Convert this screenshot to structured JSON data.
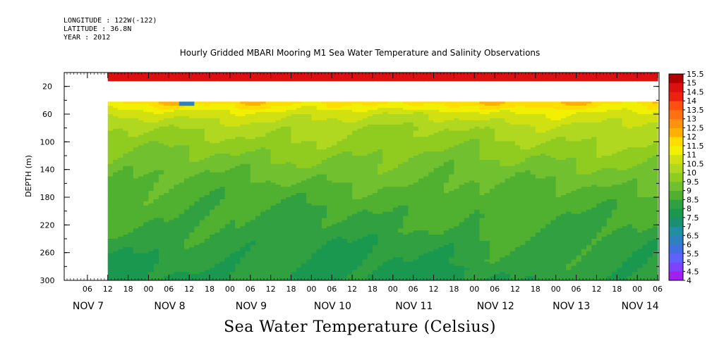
{
  "header": {
    "longitude": "LONGITUDE : 122W(-122)",
    "latitude": "LATITUDE : 36.8N",
    "year": "YEAR : 2012"
  },
  "chart_data": {
    "type": "heatmap",
    "title": "Hourly Gridded MBARI Mooring M1 Sea Water Temperature and Salinity Observations",
    "xlabel": "",
    "ylabel": "DEPTH (m)",
    "colorbar_label": "Sea Water Temperature (Celsius)",
    "ylim": [
      300,
      0
    ],
    "y_ticks": [
      20,
      60,
      100,
      140,
      180,
      220,
      260,
      300
    ],
    "x_hour_ticks": [
      "06",
      "12",
      "18",
      "00",
      "06",
      "12",
      "18",
      "00",
      "06",
      "12",
      "18",
      "00",
      "06",
      "12",
      "18",
      "00",
      "06",
      "12",
      "18",
      "00",
      "06",
      "12",
      "18",
      "00",
      "06",
      "12",
      "18",
      "00",
      "06"
    ],
    "x_day_labels": [
      "NOV  7",
      "NOV  8",
      "NOV  9",
      "NOV 10",
      "NOV 11",
      "NOV 12",
      "NOV 13",
      "NOV 14"
    ],
    "data_start": "2012-11-07 12:00",
    "data_end": "2012-11-14 06:00",
    "colorbar_levels": [
      4,
      4.5,
      5,
      5.5,
      6,
      6.5,
      7,
      7.5,
      8,
      8.5,
      9,
      9.5,
      10,
      10.5,
      11,
      11.5,
      12,
      12.5,
      13,
      13.5,
      14,
      14.5,
      15,
      15.5
    ],
    "colorbar_colors": [
      "#cc00ff",
      "#a020f0",
      "#8040ff",
      "#6060ff",
      "#4070e0",
      "#3080c0",
      "#2090a0",
      "#1a9070",
      "#1a9850",
      "#30a040",
      "#50b030",
      "#70c030",
      "#90cc20",
      "#b0d820",
      "#d0e010",
      "#f0f000",
      "#ffdd00",
      "#ffb000",
      "#ff9010",
      "#ff7010",
      "#ff5010",
      "#ee2010",
      "#dd1010",
      "#b00000"
    ],
    "depth_profile": [
      {
        "depth": 10,
        "temp": 15.3
      },
      {
        "depth": 40,
        "temp": 12.3
      },
      {
        "depth": 60,
        "temp": 11.2
      },
      {
        "depth": 80,
        "temp": 10.6
      },
      {
        "depth": 100,
        "temp": 10.3
      },
      {
        "depth": 140,
        "temp": 9.7
      },
      {
        "depth": 180,
        "temp": 9.2
      },
      {
        "depth": 220,
        "temp": 8.9
      },
      {
        "depth": 260,
        "temp": 8.6
      },
      {
        "depth": 300,
        "temp": 8.4
      }
    ],
    "missing_depth_range": [
      13,
      40
    ],
    "anomaly": {
      "time": "2012-11-08 10:00",
      "depth": 40,
      "temp": 6.5
    }
  }
}
